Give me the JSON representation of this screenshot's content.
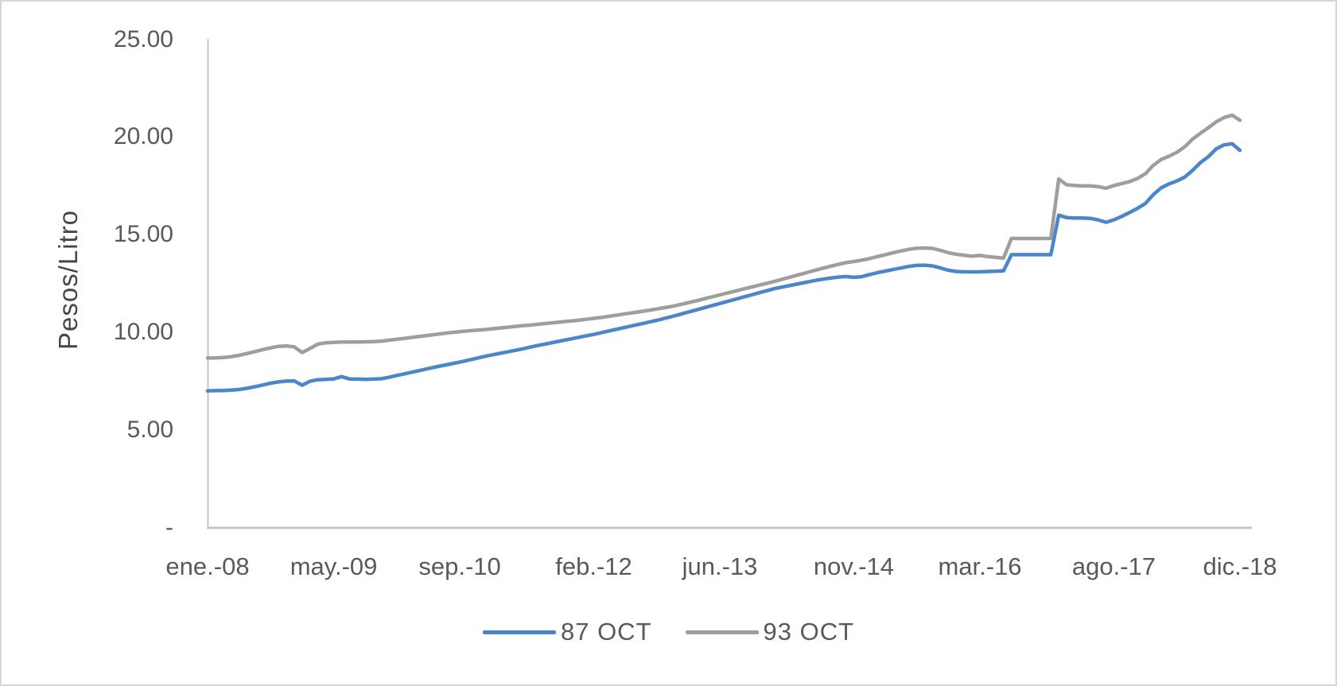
{
  "figure": {
    "background_color": "#ffffff",
    "frame_border_color": "#d6d6d6",
    "axis_line_color": "#c6c6c6",
    "tick_label_color": "#595959",
    "axis_title_color": "#474747"
  },
  "chart_data": {
    "type": "line",
    "title": "",
    "xlabel": "",
    "ylabel": "Pesos/Litro",
    "x_unit": "month",
    "x_start": "ene.-08",
    "x_end": "dic.-18",
    "n_points": 132,
    "ylim": [
      0,
      25
    ],
    "grid": false,
    "legend_position": "bottom",
    "y_tick_values": [
      25,
      20,
      15,
      10,
      5,
      0
    ],
    "y_tick_labels": [
      "25.00",
      "20.00",
      "15.00",
      "10.00",
      "5.00",
      "-"
    ],
    "x_tick_labels": [
      "ene.-08",
      "may.-09",
      "sep.-10",
      "feb.-12",
      "jun.-13",
      "nov.-14",
      "mar.-16",
      "ago.-17",
      "dic.-18"
    ],
    "x_tick_month_index": [
      0,
      16,
      32,
      49,
      65,
      82,
      98,
      115,
      131
    ],
    "series": [
      {
        "name": "87 OCT",
        "color": "#4a86c8",
        "values": [
          7.01,
          7.02,
          7.03,
          7.05,
          7.08,
          7.14,
          7.22,
          7.31,
          7.4,
          7.47,
          7.51,
          7.52,
          7.3,
          7.5,
          7.58,
          7.6,
          7.62,
          7.74,
          7.62,
          7.61,
          7.6,
          7.61,
          7.63,
          7.7,
          7.8,
          7.88,
          7.97,
          8.06,
          8.15,
          8.24,
          8.32,
          8.4,
          8.48,
          8.57,
          8.66,
          8.76,
          8.84,
          8.92,
          9.0,
          9.08,
          9.16,
          9.25,
          9.34,
          9.42,
          9.5,
          9.58,
          9.66,
          9.74,
          9.82,
          9.9,
          9.99,
          10.08,
          10.17,
          10.26,
          10.35,
          10.44,
          10.53,
          10.62,
          10.72,
          10.82,
          10.93,
          11.04,
          11.15,
          11.26,
          11.37,
          11.48,
          11.59,
          11.7,
          11.81,
          11.92,
          12.03,
          12.14,
          12.25,
          12.33,
          12.41,
          12.49,
          12.57,
          12.65,
          12.72,
          12.78,
          12.83,
          12.86,
          12.82,
          12.85,
          12.96,
          13.06,
          13.14,
          13.22,
          13.3,
          13.38,
          13.43,
          13.44,
          13.4,
          13.3,
          13.18,
          13.12,
          13.1,
          13.1,
          13.1,
          13.12,
          13.13,
          13.15,
          13.98,
          13.98,
          13.98,
          13.98,
          13.98,
          13.98,
          16.0,
          15.88,
          15.86,
          15.86,
          15.84,
          15.76,
          15.64,
          15.76,
          15.94,
          16.14,
          16.35,
          16.6,
          17.05,
          17.4,
          17.6,
          17.75,
          17.95,
          18.3,
          18.7,
          19.0,
          19.4,
          19.6,
          19.66,
          19.32
        ]
      },
      {
        "name": "93 OCT",
        "color": "#9e9e9e",
        "values": [
          8.69,
          8.7,
          8.72,
          8.76,
          8.83,
          8.92,
          9.02,
          9.12,
          9.21,
          9.29,
          9.31,
          9.26,
          8.97,
          9.18,
          9.4,
          9.47,
          9.49,
          9.51,
          9.51,
          9.51,
          9.52,
          9.53,
          9.55,
          9.6,
          9.65,
          9.7,
          9.75,
          9.8,
          9.85,
          9.9,
          9.95,
          10.0,
          10.04,
          10.08,
          10.11,
          10.14,
          10.18,
          10.22,
          10.26,
          10.3,
          10.34,
          10.38,
          10.42,
          10.46,
          10.5,
          10.54,
          10.58,
          10.62,
          10.67,
          10.72,
          10.77,
          10.83,
          10.89,
          10.95,
          11.01,
          11.07,
          11.13,
          11.2,
          11.27,
          11.34,
          11.43,
          11.52,
          11.62,
          11.72,
          11.82,
          11.92,
          12.02,
          12.12,
          12.22,
          12.32,
          12.42,
          12.52,
          12.62,
          12.73,
          12.84,
          12.95,
          13.06,
          13.17,
          13.28,
          13.38,
          13.48,
          13.57,
          13.63,
          13.7,
          13.78,
          13.88,
          13.98,
          14.08,
          14.17,
          14.25,
          14.31,
          14.32,
          14.3,
          14.2,
          14.08,
          14.0,
          13.95,
          13.9,
          13.94,
          13.88,
          13.84,
          13.8,
          14.81,
          14.81,
          14.81,
          14.81,
          14.81,
          14.81,
          17.85,
          17.56,
          17.52,
          17.5,
          17.5,
          17.46,
          17.38,
          17.52,
          17.62,
          17.72,
          17.88,
          18.12,
          18.55,
          18.85,
          19.02,
          19.22,
          19.5,
          19.9,
          20.2,
          20.48,
          20.78,
          21.0,
          21.12,
          20.86
        ]
      }
    ]
  }
}
